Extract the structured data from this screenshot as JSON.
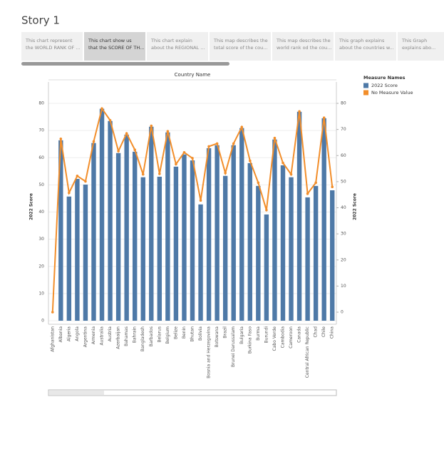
{
  "story": {
    "title": "Story 1",
    "tabs": [
      [
        "This chart represent",
        "the WORLD RANK OF ..."
      ],
      [
        "This chart show us",
        "that the SCORE OF TH..."
      ],
      [
        "This chart explain",
        "about the REGIONAL ..."
      ],
      [
        "This map describes the",
        "total score of the cou..."
      ],
      [
        "This map describes the",
        "world rank od the cou..."
      ],
      [
        "This graph explains",
        "about the countries w..."
      ],
      [
        "This Graph",
        "explains abo..."
      ]
    ],
    "selected_tab": 1
  },
  "chart_data": {
    "type": "bar",
    "title": "Country Name",
    "categories": [
      "Afghanistan",
      "Albania",
      "Algeria",
      "Angola",
      "Argentina",
      "Armenia",
      "Australia",
      "Austria",
      "Azerbaijan",
      "Bahamas",
      "Bahrain",
      "Bangladesh",
      "Barbados",
      "Belarus",
      "Belgium",
      "Belize",
      "Benin",
      "Bhutan",
      "Bolivia",
      "Bosnia and Herzegovina",
      "Botswana",
      "Brazil",
      "Brunei Darussalam",
      "Bulgaria",
      "Burkina Faso",
      "Burma",
      "Burundi",
      "Cabo Verde",
      "Cambodia",
      "Cameroon",
      "Canada",
      "Central African Republic",
      "Chad",
      "Chile",
      "China"
    ],
    "series": [
      {
        "name": "2022 Score",
        "color": "#4e79a7",
        "type": "bar",
        "values": [
          null,
          66.4,
          45.7,
          52.2,
          50.1,
          65.4,
          78,
          73.5,
          61.7,
          68.5,
          62.2,
          52.8,
          71.4,
          53,
          69.3,
          56.7,
          61.2,
          59,
          42.8,
          63.5,
          64.6,
          53.3,
          64.6,
          70.9,
          58,
          49.6,
          39.1,
          66.7,
          57.2,
          52.8,
          76.9,
          45.4,
          49.6,
          74.5,
          48
        ]
      },
      {
        "name": "No Measure Value",
        "color": "#f28e2b",
        "type": "line",
        "axis": "y2",
        "values": [
          0,
          66.4,
          45.7,
          52.2,
          50.1,
          65.4,
          78,
          73.5,
          61.7,
          68.5,
          62.2,
          52.8,
          71.4,
          53,
          69.3,
          56.7,
          61.2,
          59,
          42.8,
          63.5,
          64.6,
          53.3,
          64.6,
          70.9,
          58,
          49.6,
          39.1,
          66.7,
          57.2,
          52.8,
          76.9,
          45.4,
          49.6,
          74.5,
          48
        ]
      }
    ],
    "ylabel": "2022 Score",
    "y2label": "2022 Score",
    "ylim": [
      0,
      80
    ],
    "yticks": [
      0,
      10,
      20,
      30,
      40,
      50,
      60,
      70,
      80
    ],
    "y2lim": [
      0,
      80
    ],
    "y2ticks": [
      0,
      10,
      20,
      30,
      40,
      50,
      60,
      70,
      80
    ],
    "grid": true,
    "legend_title": "Measure Names",
    "legend": "right"
  }
}
